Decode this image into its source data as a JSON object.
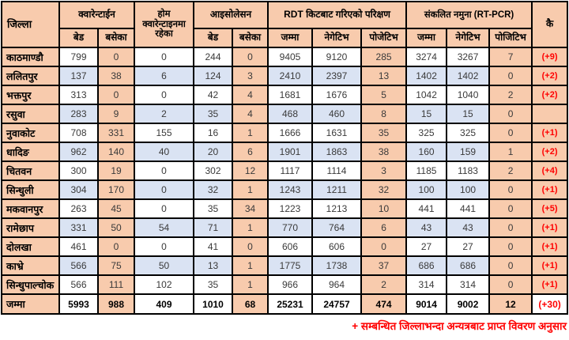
{
  "colors": {
    "peach": "#f8cbad",
    "stripe_blue": "#dae3f3",
    "remark_red": "#ff0000",
    "border": "#000000"
  },
  "table": {
    "header": {
      "district": "जिल्ला",
      "quarantine": "क्वारेन्टाईन",
      "home_quarantine": "होम क्वारेन्टाइनमा रहेका",
      "isolation": "आइसोलेसन",
      "rdt": "RDT किटबाट गरिएको परिक्षण",
      "rtpcr": "संकलित नमुना (RT-PCR)",
      "remark": "कै",
      "sub": {
        "bed": "बेड",
        "occupied": "बसेका",
        "total": "जम्मा",
        "negative": "नेगेटिभ",
        "positive_rdt": "पोजेटिभ",
        "positive_pcr": "पोजिटिभ"
      }
    },
    "rows": [
      {
        "district": "काठमाण्डौ",
        "values": [
          799,
          0,
          0,
          244,
          0,
          9405,
          9120,
          285,
          3274,
          3267,
          7
        ],
        "remark": "(+9)"
      },
      {
        "district": "ललितपुर",
        "values": [
          137,
          38,
          6,
          124,
          3,
          2410,
          2397,
          13,
          1402,
          1402,
          0
        ],
        "remark": "(+2)"
      },
      {
        "district": "भक्तपुर",
        "values": [
          313,
          0,
          0,
          42,
          4,
          1681,
          1676,
          5,
          1042,
          1040,
          2
        ],
        "remark": "(+2)"
      },
      {
        "district": "रसुवा",
        "values": [
          283,
          9,
          2,
          35,
          4,
          468,
          460,
          8,
          15,
          15,
          0
        ],
        "remark": ""
      },
      {
        "district": "नुवाकोट",
        "values": [
          708,
          331,
          155,
          16,
          1,
          1666,
          1631,
          35,
          325,
          325,
          0
        ],
        "remark": "(+1)"
      },
      {
        "district": "धादिङ",
        "values": [
          962,
          140,
          40,
          20,
          6,
          1901,
          1863,
          38,
          160,
          159,
          1
        ],
        "remark": "(+2)"
      },
      {
        "district": "चितवन",
        "values": [
          300,
          19,
          0,
          302,
          12,
          1117,
          1114,
          3,
          1185,
          1183,
          2
        ],
        "remark": "(+4)"
      },
      {
        "district": "सिन्धुली",
        "values": [
          304,
          170,
          0,
          32,
          1,
          1243,
          1211,
          32,
          100,
          100,
          0
        ],
        "remark": "(+1)"
      },
      {
        "district": "मकवानपुर",
        "values": [
          263,
          45,
          0,
          35,
          34,
          1223,
          1213,
          10,
          441,
          441,
          0
        ],
        "remark": "(+5)"
      },
      {
        "district": "रामेछाप",
        "values": [
          331,
          50,
          54,
          71,
          1,
          770,
          764,
          6,
          43,
          43,
          0
        ],
        "remark": "(+1)"
      },
      {
        "district": "दोलखा",
        "values": [
          461,
          0,
          0,
          41,
          0,
          606,
          606,
          0,
          27,
          27,
          0
        ],
        "remark": "(+1)"
      },
      {
        "district": "काभ्रे",
        "values": [
          566,
          75,
          50,
          13,
          1,
          1775,
          1738,
          37,
          686,
          686,
          0
        ],
        "remark": "(+1)"
      },
      {
        "district": "सिन्धुपाल्चोक",
        "values": [
          566,
          111,
          102,
          35,
          1,
          966,
          964,
          2,
          314,
          314,
          0
        ],
        "remark": "(+1)"
      }
    ],
    "total": {
      "district": "जम्मा",
      "values": [
        5993,
        988,
        409,
        1010,
        68,
        25231,
        24757,
        474,
        9014,
        9002,
        12
      ],
      "remark": "(+30)"
    }
  },
  "footnote": "+ सम्बन्धित जिल्लाभन्दा अन्यत्रबाट प्राप्त विवरण अनुसार"
}
